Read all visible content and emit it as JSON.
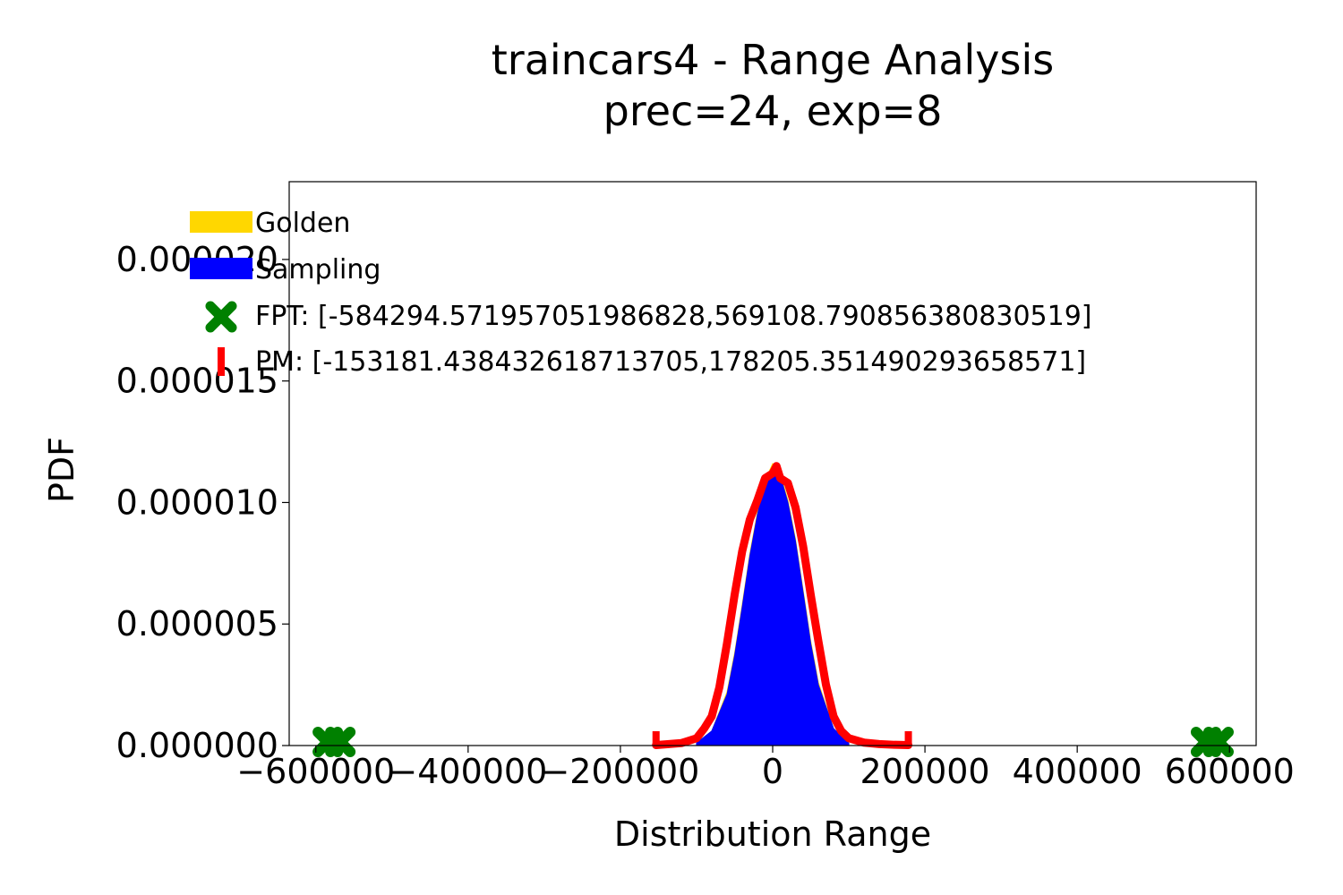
{
  "chart_data": {
    "type": "area",
    "title": "traincars4 - Range Analysis",
    "subtitle": "prec=24, exp=8",
    "xlabel": "Distribution Range",
    "ylabel": "PDF",
    "xlim": [
      -635000,
      635000
    ],
    "ylim": [
      0,
      2.32e-05
    ],
    "xticks": [
      {
        "value": -600000,
        "label": "−600000"
      },
      {
        "value": -400000,
        "label": "−400000"
      },
      {
        "value": -200000,
        "label": "−200000"
      },
      {
        "value": 0,
        "label": "0"
      },
      {
        "value": 200000,
        "label": "200000"
      },
      {
        "value": 400000,
        "label": "400000"
      },
      {
        "value": 600000,
        "label": "600000"
      }
    ],
    "yticks": [
      {
        "value": 0,
        "label": "0.000000"
      },
      {
        "value": 5e-06,
        "label": "0.000005"
      },
      {
        "value": 1e-05,
        "label": "0.000010"
      },
      {
        "value": 1.5e-05,
        "label": "0.000015"
      },
      {
        "value": 2e-05,
        "label": "0.000020"
      }
    ],
    "legend": {
      "placement": "top-left",
      "entries": [
        {
          "label": "Golden",
          "color": "#FFD700",
          "marker": "patch"
        },
        {
          "label": "Sampling",
          "color": "#0000FF",
          "marker": "patch"
        },
        {
          "label": "FPT: [-584294.571957051986828,569108.790856380830519]",
          "color": "#008000",
          "marker": "x"
        },
        {
          "label": "PM: [-153181.438432618713705,178205.351490293658571]",
          "color": "#FF0000",
          "marker": "vline"
        }
      ]
    },
    "series": [
      {
        "name": "Golden",
        "kind": "histogram",
        "color": "#FFD700",
        "x": [
          -100000,
          -80000,
          -60000,
          -50000,
          -40000,
          -30000,
          -20000,
          -10000,
          0,
          10000,
          20000,
          30000,
          40000,
          50000,
          60000,
          80000,
          100000
        ],
        "y": [
          1e-07,
          6e-07,
          2.2e-06,
          3.8e-06,
          5.8e-06,
          7.9e-06,
          9.6e-06,
          1.09e-05,
          1.16e-05,
          1.12e-05,
          1.01e-05,
          8.5e-06,
          6.4e-06,
          4.3e-06,
          2.6e-06,
          7e-07,
          1e-07
        ]
      },
      {
        "name": "Sampling",
        "kind": "histogram",
        "color": "#0000FF",
        "x": [
          -100000,
          -80000,
          -60000,
          -50000,
          -40000,
          -30000,
          -20000,
          -10000,
          0,
          10000,
          20000,
          30000,
          40000,
          50000,
          60000,
          80000,
          100000
        ],
        "y": [
          1e-07,
          6e-07,
          2.1e-06,
          3.7e-06,
          5.7e-06,
          7.8e-06,
          9.5e-06,
          1.08e-05,
          1.14e-05,
          1.11e-05,
          1e-05,
          8.4e-06,
          6.3e-06,
          4.2e-06,
          2.5e-06,
          7e-07,
          1e-07
        ]
      },
      {
        "name": "PM",
        "kind": "line",
        "color": "#FF0000",
        "x": [
          -153181,
          -140000,
          -120000,
          -100000,
          -90000,
          -80000,
          -70000,
          -60000,
          -50000,
          -40000,
          -30000,
          -20000,
          -10000,
          0,
          5000,
          10000,
          20000,
          30000,
          40000,
          50000,
          60000,
          70000,
          80000,
          90000,
          100000,
          120000,
          140000,
          160000,
          178205
        ],
        "y": [
          2e-08,
          5e-08,
          1e-07,
          3e-07,
          7e-07,
          1.2e-06,
          2.4e-06,
          4.2e-06,
          6.2e-06,
          8e-06,
          9.3e-06,
          1.01e-05,
          1.1e-05,
          1.12e-05,
          1.15e-05,
          1.1e-05,
          1.08e-05,
          9.8e-06,
          8.2e-06,
          6.2e-06,
          4.3e-06,
          2.5e-06,
          1.2e-06,
          6e-07,
          3e-07,
          1.2e-07,
          6e-08,
          3e-08,
          2e-08
        ]
      },
      {
        "name": "FPT",
        "kind": "markers",
        "color": "#008000",
        "x": [
          -584294.571957052,
          569108.7908563808
        ],
        "y": [
          0,
          0
        ]
      }
    ],
    "pm_bounds": [
      -153181.4384326187,
      178205.35149029366
    ]
  }
}
